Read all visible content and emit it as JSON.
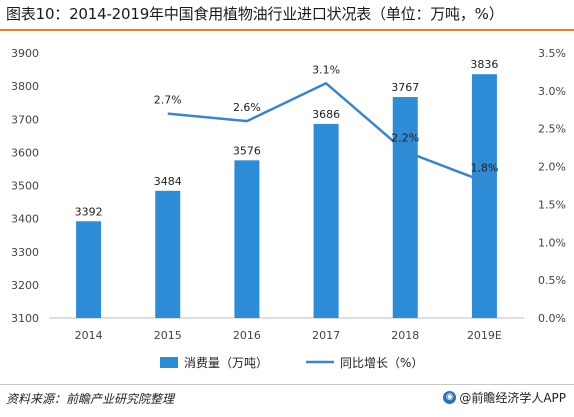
{
  "header": {
    "title": "图表10：2014-2019年中国食用植物油行业进口状况表（单位：万吨，%）"
  },
  "footer": {
    "source": "资料来源：前瞻产业研究院整理",
    "brand": "@前瞻经济学人APP"
  },
  "colors": {
    "bar": "#2e8bd6",
    "line": "#3d85c6",
    "title_rule": "#e07b39"
  },
  "chart_data": {
    "type": "bar",
    "categories": [
      "2014",
      "2015",
      "2016",
      "2017",
      "2018",
      "2019E"
    ],
    "series": [
      {
        "name": "消费量（万吨）",
        "type": "bar",
        "axis": "left",
        "values": [
          3392,
          3484,
          3576,
          3686,
          3767,
          3836
        ],
        "labels": [
          "3392",
          "3484",
          "3576",
          "3686",
          "3767",
          "3836"
        ]
      },
      {
        "name": "同比增长（%）",
        "type": "line",
        "axis": "right",
        "values": [
          null,
          2.7,
          2.6,
          3.1,
          2.2,
          1.8
        ],
        "labels": [
          "",
          "2.7%",
          "2.6%",
          "3.1%",
          "2.2%",
          "1.8%"
        ]
      }
    ],
    "y_left": {
      "min": 3100,
      "max": 3900,
      "step": 100,
      "ticks": [
        "3100",
        "3200",
        "3300",
        "3400",
        "3500",
        "3600",
        "3700",
        "3800",
        "3900"
      ]
    },
    "y_right": {
      "min": 0,
      "max": 3.5,
      "step": 0.5,
      "ticks": [
        "0.0%",
        "0.5%",
        "1.0%",
        "1.5%",
        "2.0%",
        "2.5%",
        "3.0%",
        "3.5%"
      ]
    },
    "legend": "bottom",
    "grid": false
  }
}
